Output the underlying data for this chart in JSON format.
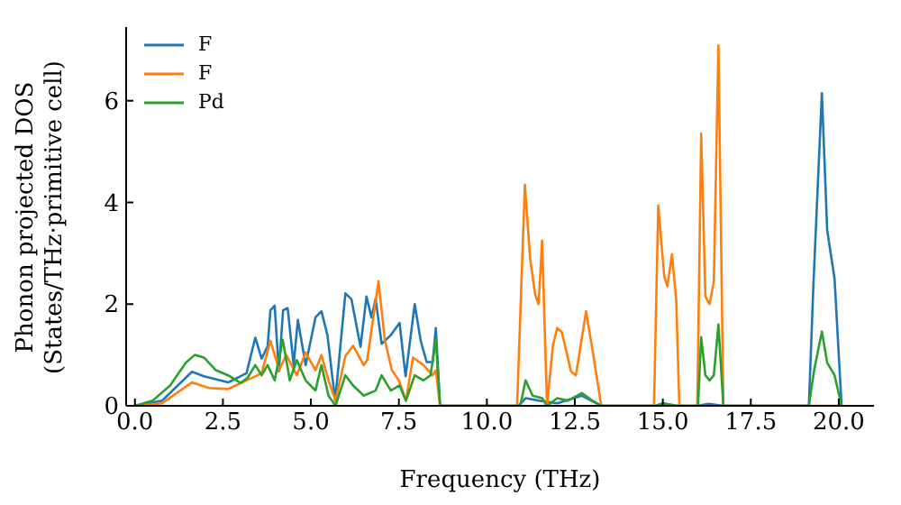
{
  "chart_data": {
    "type": "line",
    "xlabel": "Frequency (THz)",
    "ylabel": "Phonon projected DOS\n(States/THz·primitive cell)",
    "xlim": [
      -0.25,
      21
    ],
    "ylim": [
      0,
      7.45
    ],
    "xticks": [
      {
        "value": 0,
        "label": "0.0"
      },
      2.5,
      {
        "value": 5,
        "label": "5.0"
      },
      7.5,
      {
        "value": 10,
        "label": "10.0"
      },
      12.5,
      {
        "value": 15,
        "label": "15.0"
      },
      17.5,
      {
        "value": 20,
        "label": "20.0"
      }
    ],
    "yticks": [
      0,
      2,
      4,
      6
    ],
    "grid": false,
    "legend": "top left",
    "marker": "none",
    "line_style": "solid",
    "series": [
      {
        "name": "F",
        "color": "#1f77b4",
        "x": [
          0,
          0.77,
          1.62,
          1.96,
          2.65,
          3.17,
          3.42,
          3.6,
          3.77,
          3.85,
          3.97,
          4.09,
          4.21,
          4.34,
          4.51,
          4.63,
          4.85,
          5.13,
          5.3,
          5.47,
          5.69,
          5.98,
          6.15,
          6.41,
          6.58,
          6.72,
          6.84,
          7.01,
          7.27,
          7.52,
          7.69,
          7.95,
          8.12,
          8.29,
          8.46,
          8.55,
          8.67,
          10.9,
          11.1,
          11.5,
          12.0,
          12.7,
          13.25,
          14.8,
          15.0,
          15.4,
          16.0,
          16.3,
          16.72,
          19.15,
          19.28,
          19.52,
          19.67,
          19.88,
          20.08
        ],
        "values": [
          0,
          0.1,
          0.67,
          0.58,
          0.46,
          0.64,
          1.34,
          0.93,
          1.17,
          1.88,
          1.97,
          0.68,
          1.88,
          1.92,
          0.8,
          1.69,
          0.8,
          1.74,
          1.86,
          1.39,
          0.1,
          2.21,
          2.1,
          1.16,
          2.15,
          1.74,
          2.1,
          1.22,
          1.39,
          1.63,
          0.58,
          2.0,
          1.28,
          0.86,
          0.86,
          1.53,
          0,
          0,
          0.15,
          0.1,
          0.05,
          0.2,
          0,
          0,
          0.05,
          0,
          0,
          0.04,
          0,
          0,
          2.39,
          6.15,
          3.46,
          2.5,
          0
        ]
      },
      {
        "name": "F",
        "color": "#ff7f0e",
        "x": [
          0,
          0.77,
          1.62,
          2.1,
          2.65,
          3.17,
          3.6,
          3.85,
          4.1,
          4.3,
          4.6,
          4.85,
          5.13,
          5.3,
          5.5,
          5.7,
          5.98,
          6.2,
          6.5,
          6.6,
          6.92,
          7.1,
          7.3,
          7.5,
          7.7,
          7.9,
          8.2,
          8.46,
          8.55,
          8.67,
          10.86,
          11.08,
          11.23,
          11.37,
          11.47,
          11.57,
          11.71,
          11.88,
          12.0,
          12.13,
          12.39,
          12.53,
          12.82,
          13.04,
          13.25,
          14.75,
          14.87,
          15.04,
          15.13,
          15.26,
          15.38,
          15.47,
          15.98,
          16.09,
          16.21,
          16.33,
          16.45,
          16.58,
          16.72,
          20.08
        ],
        "values": [
          0,
          0.05,
          0.46,
          0.35,
          0.33,
          0.5,
          0.64,
          1.28,
          0.7,
          1.0,
          0.6,
          1.05,
          0.7,
          1.0,
          0.5,
          0.1,
          0.98,
          1.18,
          0.8,
          0.9,
          2.45,
          1.3,
          0.7,
          0.5,
          0.1,
          0.95,
          0.8,
          0.6,
          0.7,
          0,
          0,
          4.35,
          2.9,
          2.2,
          2.0,
          3.25,
          0,
          1.2,
          1.53,
          1.45,
          0.68,
          0.6,
          1.86,
          0.93,
          0,
          0,
          3.94,
          2.55,
          2.35,
          2.98,
          2.1,
          0,
          0,
          5.35,
          2.15,
          2.0,
          2.45,
          7.09,
          0,
          0
        ]
      },
      {
        "name": "Pd",
        "color": "#2ca02c",
        "x": [
          0,
          0.5,
          1.0,
          1.45,
          1.7,
          1.96,
          2.3,
          2.65,
          3.0,
          3.2,
          3.42,
          3.6,
          3.77,
          3.97,
          4.2,
          4.4,
          4.6,
          4.85,
          5.13,
          5.3,
          5.5,
          5.7,
          5.98,
          6.2,
          6.5,
          6.84,
          7.01,
          7.27,
          7.52,
          7.7,
          7.95,
          8.2,
          8.4,
          8.55,
          8.67,
          10.95,
          11.1,
          11.3,
          11.57,
          11.71,
          12.0,
          12.3,
          12.7,
          13.0,
          13.25,
          14.8,
          15.0,
          15.4,
          16.0,
          16.09,
          16.21,
          16.33,
          16.45,
          16.58,
          16.72,
          19.15,
          19.3,
          19.52,
          19.67,
          19.88,
          20.08
        ],
        "values": [
          0,
          0.1,
          0.4,
          0.85,
          1.0,
          0.95,
          0.7,
          0.6,
          0.45,
          0.55,
          0.8,
          0.6,
          0.8,
          0.5,
          1.3,
          0.5,
          0.9,
          0.5,
          0.3,
          0.8,
          0.2,
          0,
          0.6,
          0.4,
          0.2,
          0.3,
          0.6,
          0.3,
          0.4,
          0.1,
          0.6,
          0.5,
          0.6,
          1.3,
          0,
          0,
          0.5,
          0.2,
          0.15,
          0,
          0.15,
          0.1,
          0.25,
          0.1,
          0,
          0,
          0.05,
          0,
          0,
          1.35,
          0.6,
          0.5,
          0.6,
          1.6,
          0,
          0,
          0.7,
          1.46,
          0.85,
          0.6,
          0
        ]
      }
    ]
  }
}
